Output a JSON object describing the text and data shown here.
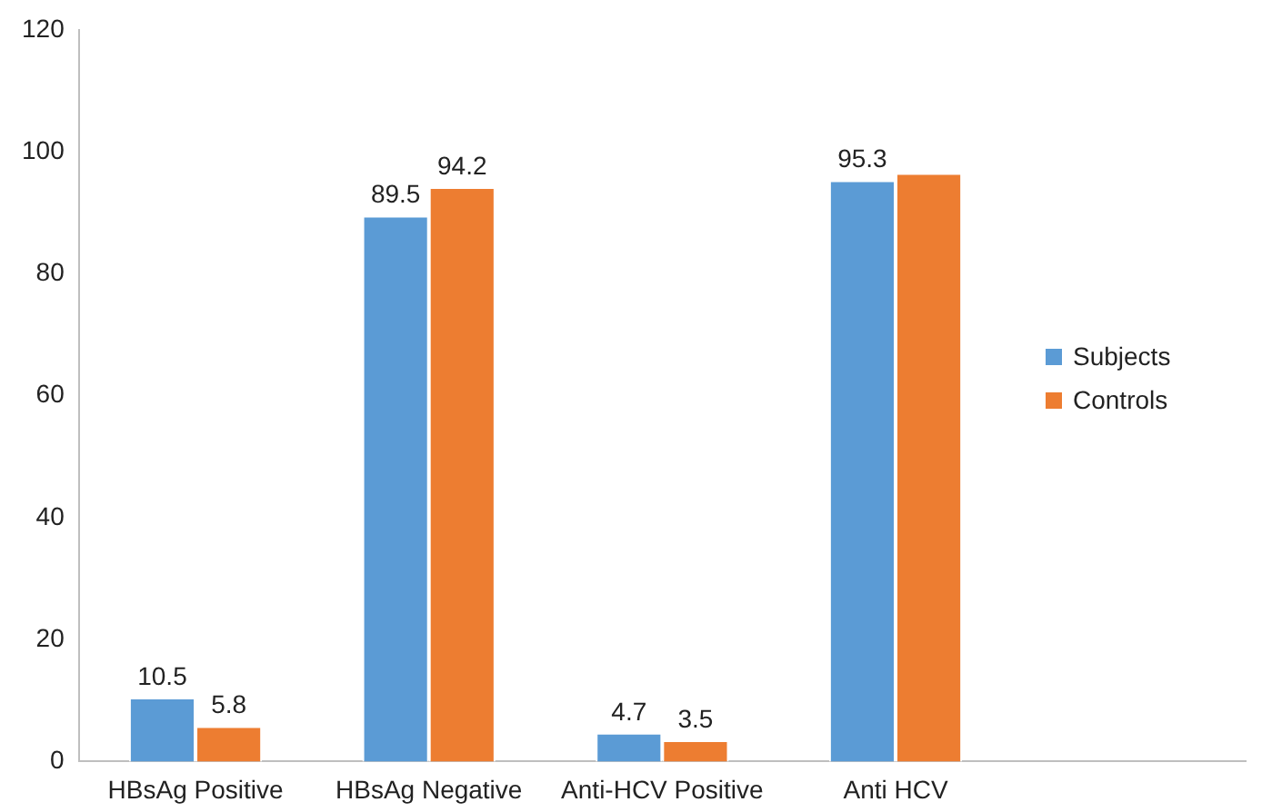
{
  "chart_data": {
    "type": "bar",
    "categories": [
      "HBsAg Positive",
      "HBsAg Negative",
      "Anti-HCV Positive",
      "Anti HCV",
      null
    ],
    "series": [
      {
        "name": "Subjects",
        "color": "#5b9bd5",
        "values": [
          10.5,
          89.5,
          4.7,
          95.3,
          null
        ],
        "value_labels": [
          "10.5",
          "89.5",
          "4.7",
          "95.3",
          null
        ]
      },
      {
        "name": "Controls",
        "color": "#ed7d31",
        "values": [
          5.8,
          94.2,
          3.5,
          96.5,
          null
        ],
        "value_labels": [
          "5.8",
          "94.2",
          "3.5",
          null,
          null
        ]
      }
    ],
    "ylim": [
      0,
      120
    ],
    "yticks": [
      0,
      20,
      40,
      60,
      80,
      100,
      120
    ],
    "grid": false,
    "legend": "right"
  }
}
